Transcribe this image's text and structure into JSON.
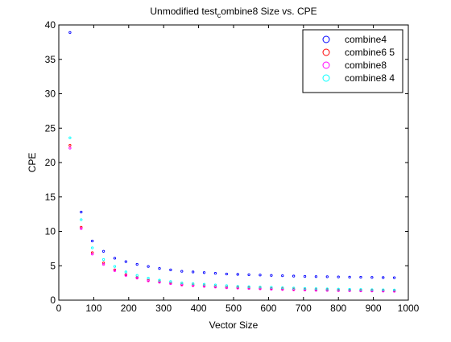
{
  "chart_data": {
    "type": "scatter",
    "title": "Unmodified test",
    "title_subscript": "c",
    "title_rest": "ombine8 Size vs. CPE",
    "xlabel": "Vector Size",
    "ylabel": "CPE",
    "xlim": [
      0,
      1000
    ],
    "ylim": [
      0,
      40
    ],
    "xticks": [
      0,
      100,
      200,
      300,
      400,
      500,
      600,
      700,
      800,
      900,
      1000
    ],
    "yticks": [
      0,
      5,
      10,
      15,
      20,
      25,
      30,
      35,
      40
    ],
    "grid": false,
    "legend_position": "top-right",
    "marker": "circle",
    "x": [
      32,
      64,
      96,
      128,
      160,
      192,
      224,
      256,
      288,
      320,
      352,
      384,
      416,
      448,
      480,
      512,
      544,
      576,
      608,
      640,
      672,
      704,
      736,
      768,
      800,
      832,
      864,
      896,
      928,
      960
    ],
    "series": [
      {
        "name": "combine4",
        "color": "#0000ff",
        "values": [
          38.9,
          12.8,
          8.6,
          7.1,
          6.1,
          5.6,
          5.2,
          4.9,
          4.6,
          4.4,
          4.2,
          4.1,
          4.0,
          3.9,
          3.8,
          3.75,
          3.7,
          3.65,
          3.6,
          3.55,
          3.5,
          3.45,
          3.42,
          3.4,
          3.37,
          3.35,
          3.33,
          3.3,
          3.28,
          3.26
        ]
      },
      {
        "name": "combine6 5",
        "color": "#ff0000",
        "values": [
          22.5,
          10.6,
          6.9,
          5.4,
          4.4,
          3.7,
          3.3,
          2.9,
          2.7,
          2.5,
          2.3,
          2.2,
          2.1,
          2.0,
          1.9,
          1.85,
          1.8,
          1.75,
          1.7,
          1.65,
          1.6,
          1.55,
          1.52,
          1.5,
          1.47,
          1.45,
          1.43,
          1.4,
          1.38,
          1.36
        ]
      },
      {
        "name": "combine8",
        "color": "#ff00ff",
        "values": [
          22.1,
          10.4,
          6.7,
          5.2,
          4.3,
          3.6,
          3.2,
          2.8,
          2.6,
          2.4,
          2.2,
          2.1,
          2.0,
          1.9,
          1.8,
          1.75,
          1.7,
          1.65,
          1.6,
          1.55,
          1.5,
          1.47,
          1.44,
          1.42,
          1.39,
          1.37,
          1.35,
          1.33,
          1.31,
          1.29
        ]
      },
      {
        "name": "combine8 4",
        "color": "#00ffff",
        "values": [
          23.6,
          11.7,
          7.6,
          5.9,
          4.9,
          4.1,
          3.6,
          3.2,
          2.9,
          2.7,
          2.5,
          2.4,
          2.3,
          2.2,
          2.1,
          2.0,
          1.95,
          1.9,
          1.85,
          1.8,
          1.75,
          1.7,
          1.66,
          1.63,
          1.6,
          1.57,
          1.55,
          1.52,
          1.5,
          1.48
        ]
      }
    ]
  }
}
